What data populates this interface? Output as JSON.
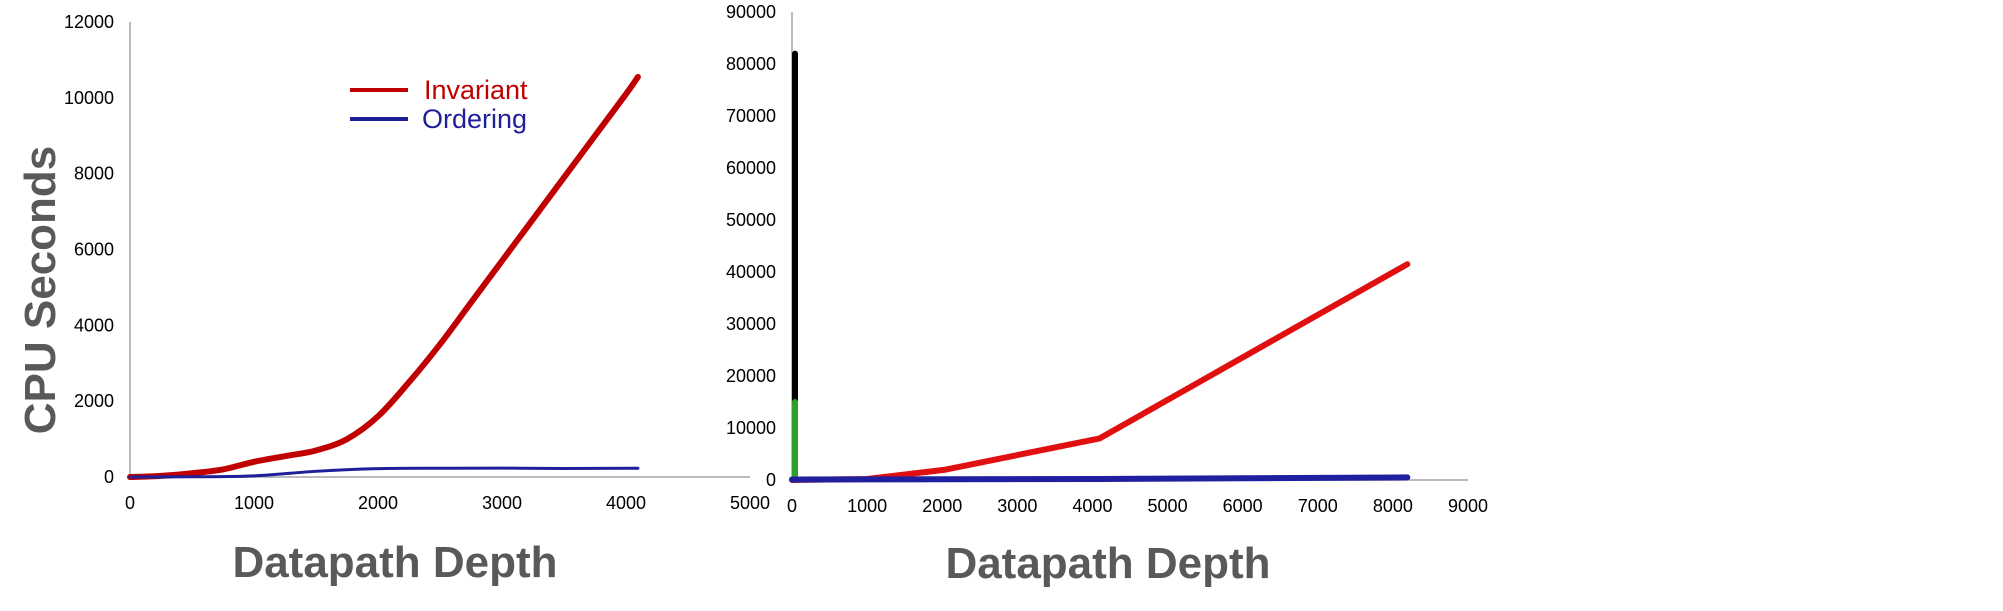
{
  "chart_data": [
    {
      "type": "line",
      "title": "",
      "xlabel": "Datapath Depth",
      "ylabel": "CPU Seconds",
      "xlim": [
        0,
        5000
      ],
      "ylim": [
        0,
        12000
      ],
      "x_ticks": [
        "0",
        "1000",
        "2000",
        "3000",
        "4000",
        "5000"
      ],
      "y_ticks": [
        "0",
        "2000",
        "4000",
        "6000",
        "8000",
        "10000",
        "12000"
      ],
      "grid": false,
      "legend_placement": "top-center",
      "series": [
        {
          "name": "Invariant",
          "color": "#c00000",
          "x": [
            0,
            250,
            500,
            750,
            1000,
            1250,
            1500,
            1750,
            2000,
            2250,
            2500,
            2750,
            3000,
            3250,
            3500,
            3750,
            4000,
            4096
          ],
          "y": [
            0,
            30,
            100,
            200,
            400,
            550,
            700,
            1000,
            1600,
            2500,
            3500,
            4600,
            5700,
            6800,
            7900,
            9000,
            10100,
            10550
          ]
        },
        {
          "name": "Ordering",
          "color": "#1f1f9a",
          "x": [
            0,
            500,
            1000,
            1500,
            2000,
            2500,
            3000,
            3500,
            4096
          ],
          "y": [
            0,
            5,
            30,
            150,
            220,
            230,
            235,
            225,
            230
          ]
        }
      ]
    },
    {
      "type": "line",
      "title": "",
      "xlabel": "Datapath Depth",
      "ylabel": "",
      "xlim": [
        0,
        9000
      ],
      "ylim": [
        0,
        90000
      ],
      "x_ticks": [
        "0",
        "1000",
        "2000",
        "3000",
        "4000",
        "5000",
        "6000",
        "7000",
        "8000",
        "9000"
      ],
      "y_ticks": [
        "0",
        "10000",
        "20000",
        "30000",
        "40000",
        "50000",
        "60000",
        "70000",
        "80000",
        "90000"
      ],
      "grid": false,
      "series": [
        {
          "color": "#000000",
          "x": [
            40,
            40
          ],
          "y": [
            0,
            82000
          ]
        },
        {
          "color": "#2ca02c",
          "x": [
            40,
            40
          ],
          "y": [
            0,
            15000
          ]
        },
        {
          "color": "#e01010",
          "x": [
            0,
            1000,
            2048,
            4096,
            8192
          ],
          "y": [
            0,
            200,
            2000,
            8000,
            41500
          ]
        },
        {
          "color": "#1f1fa0",
          "x": [
            0,
            1000,
            2048,
            4096,
            8192
          ],
          "y": [
            100,
            120,
            150,
            200,
            500
          ]
        }
      ]
    }
  ]
}
